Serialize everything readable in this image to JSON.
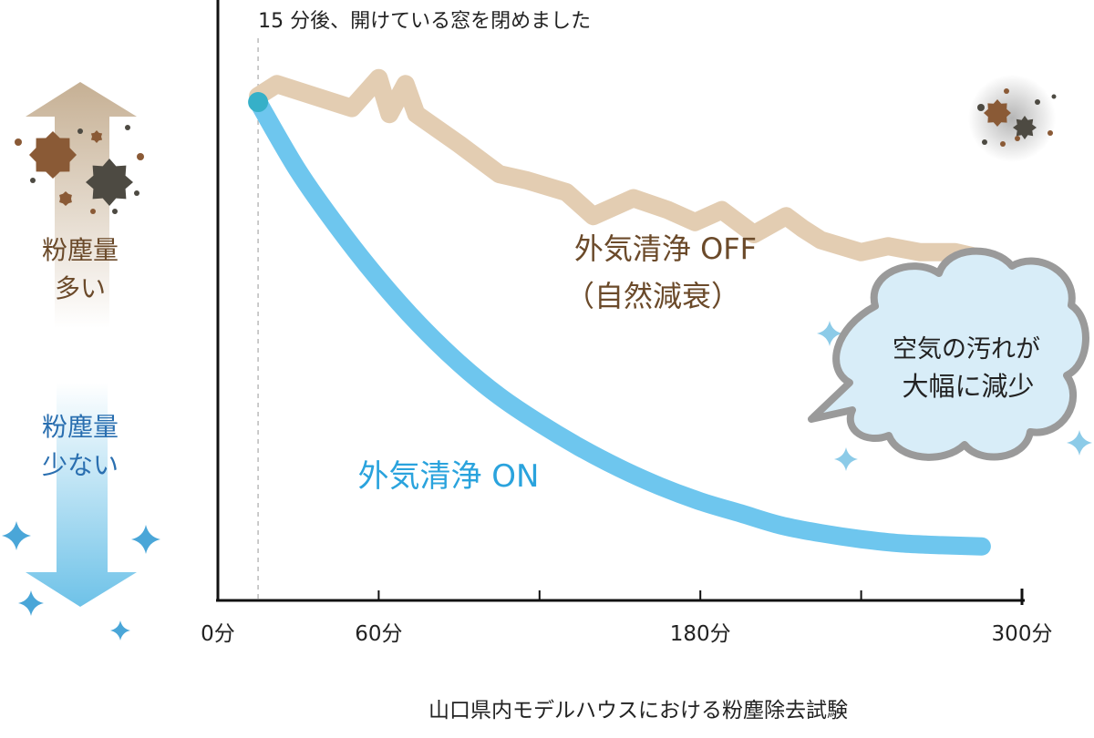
{
  "chart_data": {
    "type": "line",
    "xlabel": "",
    "ylabel": "",
    "x_ticks": [
      {
        "value": 0,
        "label": "0分"
      },
      {
        "value": 60,
        "label": "60分"
      },
      {
        "value": 180,
        "label": "180分"
      },
      {
        "value": 300,
        "label": "300分"
      }
    ],
    "minor_ticks": [
      120,
      240
    ],
    "xlim": [
      0,
      300
    ],
    "ylim": [
      0,
      100
    ],
    "grid": false,
    "event": {
      "x": 15,
      "label": "15 分後、開けている窓を閉めました"
    },
    "series": [
      {
        "name": "外気清浄 OFF",
        "sub_label": "（自然減衰）",
        "color": "#e3cdb2",
        "label_color": "#6b4a2a",
        "points": [
          [
            15,
            84
          ],
          [
            22,
            86
          ],
          [
            50,
            82
          ],
          [
            60,
            87
          ],
          [
            64,
            81
          ],
          [
            70,
            86
          ],
          [
            74,
            81
          ],
          [
            90,
            76
          ],
          [
            105,
            71
          ],
          [
            115,
            70
          ],
          [
            130,
            68
          ],
          [
            140,
            64
          ],
          [
            155,
            67
          ],
          [
            168,
            65
          ],
          [
            178,
            63
          ],
          [
            188,
            65
          ],
          [
            200,
            61
          ],
          [
            212,
            64
          ],
          [
            218,
            62
          ],
          [
            225,
            60
          ],
          [
            240,
            58
          ],
          [
            250,
            59
          ],
          [
            262,
            58
          ],
          [
            275,
            58
          ],
          [
            285,
            57
          ]
        ]
      },
      {
        "name": "外気清浄 ON",
        "color": "#6ec6ee",
        "label_color": "#2aa3dd",
        "points": [
          [
            15,
            83
          ],
          [
            30,
            71.5
          ],
          [
            45,
            62
          ],
          [
            60,
            53.5
          ],
          [
            75,
            46
          ],
          [
            90,
            39.5
          ],
          [
            105,
            34
          ],
          [
            120,
            29.5
          ],
          [
            135,
            25.5
          ],
          [
            150,
            22
          ],
          [
            165,
            19
          ],
          [
            180,
            16.5
          ],
          [
            195,
            14.5
          ],
          [
            210,
            12.5
          ],
          [
            225,
            11.2
          ],
          [
            240,
            10.2
          ],
          [
            255,
            9.5
          ],
          [
            270,
            9.2
          ],
          [
            285,
            9
          ]
        ]
      }
    ],
    "y_indicators": {
      "up_label": [
        "粉塵量",
        "多い"
      ],
      "down_label": [
        "粉塵量",
        "少ない"
      ]
    },
    "callout": [
      "空気の汚れが",
      "大幅に減少"
    ],
    "caption": "山口県内モデルハウスにおける粉塵除去試験"
  },
  "colors": {
    "axis": "#111111",
    "brown_text": "#6b4a2a",
    "blue_text": "#2a8fd0",
    "dust_brown": "#8a5a36",
    "dust_dark": "#4d4a42",
    "sparkle": "#4aa6d8",
    "cloud_fill": "#d8edf8",
    "cloud_stroke": "#9a9a9a"
  }
}
